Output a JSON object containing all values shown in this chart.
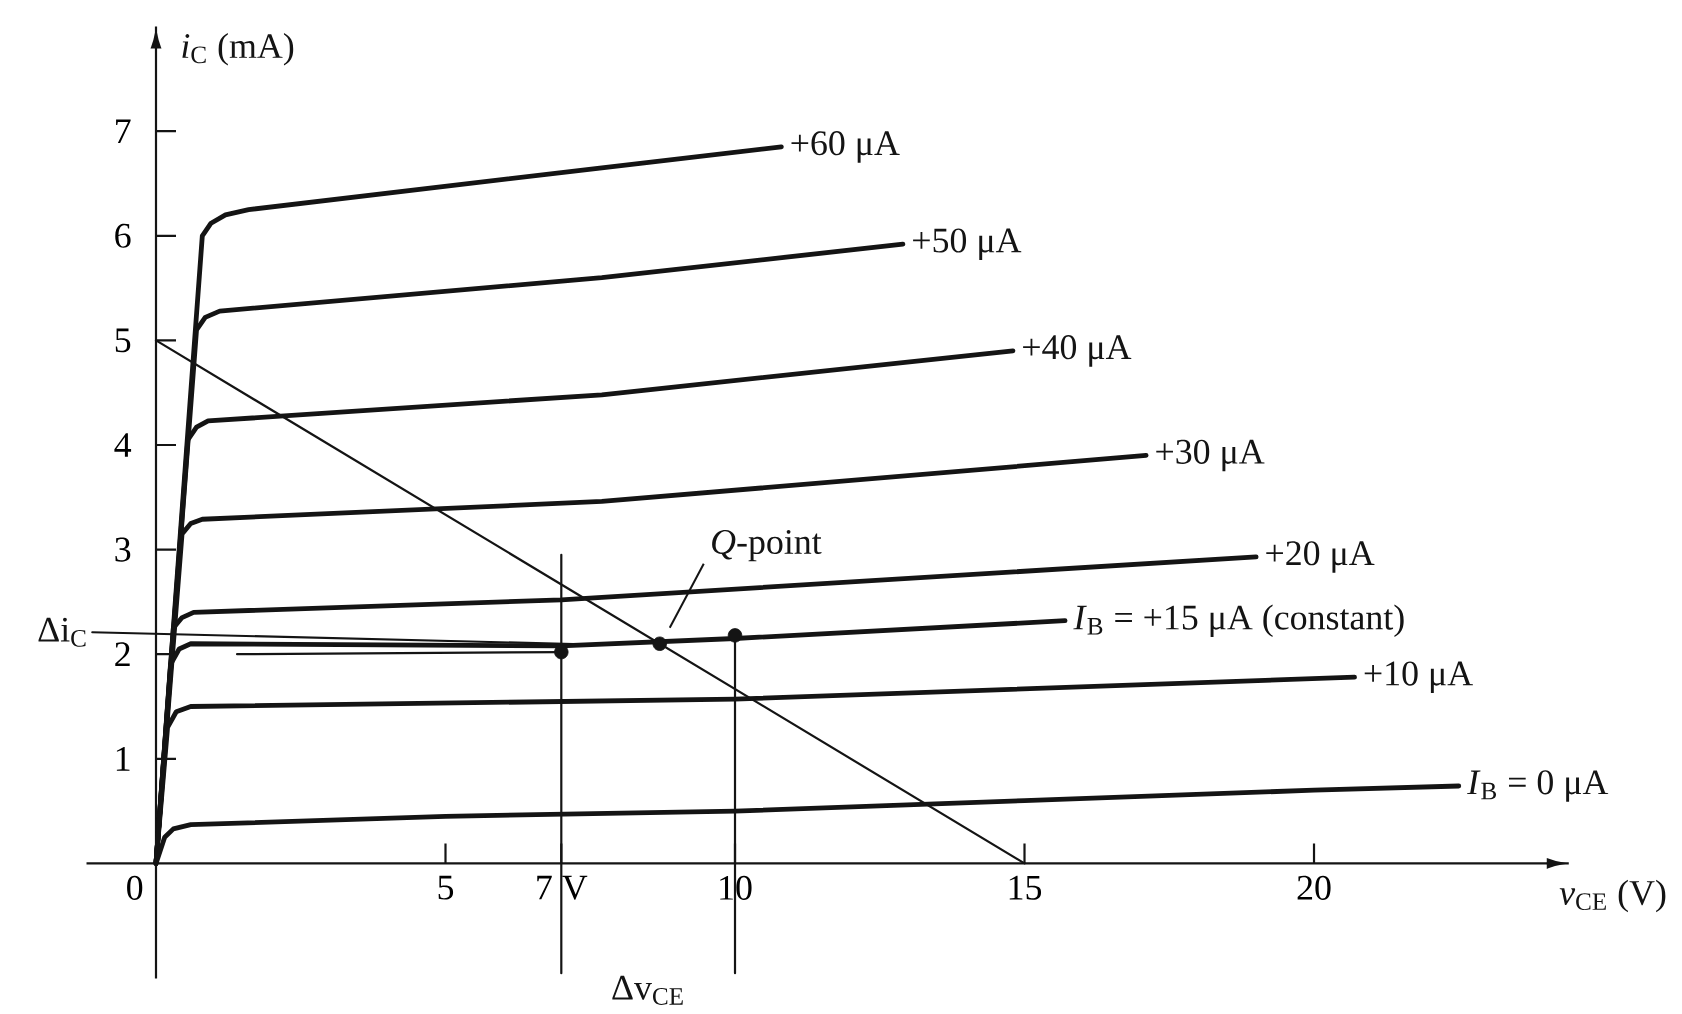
{
  "chart_data": {
    "type": "line",
    "xlabel": "*v*$_{CE}$ (V)",
    "ylabel": "*i*$_{C}$ (mA)",
    "xlim": [
      -1.2,
      24.4
    ],
    "ylim": [
      -1.1,
      8
    ],
    "xticks": [
      0,
      5,
      {
        "value": 7,
        "label": "7 V"
      },
      10,
      15,
      20
    ],
    "yticks": [
      1,
      2,
      3,
      4,
      5,
      6,
      7
    ],
    "series": [
      {
        "name": "+60 μA",
        "color": "#141414",
        "x": [
          0,
          0.8,
          0.95,
          1.2,
          1.6,
          7.7,
          10.8
        ],
        "values": [
          0,
          6.0,
          6.12,
          6.2,
          6.25,
          6.65,
          6.85
        ]
      },
      {
        "name": "+50 μA",
        "color": "#141414",
        "x": [
          0,
          0.7,
          0.85,
          1.1,
          7.7,
          12.9
        ],
        "values": [
          0,
          5.1,
          5.22,
          5.28,
          5.6,
          5.92
        ]
      },
      {
        "name": "+40 μA",
        "color": "#141414",
        "x": [
          0,
          0.55,
          0.7,
          0.9,
          7.7,
          14.8
        ],
        "values": [
          0,
          4.05,
          4.17,
          4.23,
          4.48,
          4.9
        ]
      },
      {
        "name": "+30 μA",
        "color": "#141414",
        "x": [
          0,
          0.45,
          0.6,
          0.8,
          7.7,
          17.1
        ],
        "values": [
          0,
          3.15,
          3.25,
          3.29,
          3.46,
          3.9
        ]
      },
      {
        "name": "+20 μA",
        "color": "#141414",
        "x": [
          0,
          0.3,
          0.45,
          0.65,
          7,
          19
        ],
        "values": [
          0,
          2.25,
          2.35,
          2.4,
          2.52,
          2.93
        ]
      },
      {
        "name": "*I*$_{B}$ = +15 μA (constant)",
        "color": "#141414",
        "x": [
          0,
          0.25,
          0.4,
          0.6,
          7,
          10,
          15.7
        ],
        "values": [
          0,
          1.9,
          2.05,
          2.1,
          2.08,
          2.15,
          2.32
        ]
      },
      {
        "name": "+10 μA",
        "color": "#141414",
        "x": [
          0,
          0.2,
          0.35,
          0.6,
          10,
          20.7
        ],
        "values": [
          0,
          1.3,
          1.45,
          1.5,
          1.57,
          1.78
        ]
      },
      {
        "name": "*I*$_{B}$ = 0 μA",
        "color": "#141414",
        "x": [
          0,
          0.15,
          0.3,
          0.6,
          5,
          10,
          15,
          20,
          22.5
        ],
        "values": [
          0,
          0.25,
          0.33,
          0.37,
          0.45,
          0.5,
          0.6,
          0.7,
          0.74
        ]
      },
      {
        "color": "#141414",
        "x": [
          0,
          15
        ],
        "values": [
          5,
          0
        ]
      },
      {
        "color": "#141414",
        "x": [
          7,
          7
        ],
        "values": [
          -1.05,
          2.95
        ]
      },
      {
        "color": "#141414",
        "x": [
          10,
          10
        ],
        "values": [
          -1.05,
          2.15
        ]
      },
      {
        "color": "#141414",
        "x": [
          -1.1,
          7.7
        ],
        "values": [
          2.21,
          2.09
        ]
      },
      {
        "color": "#141414",
        "x": [
          1.4,
          7
        ],
        "values": [
          2.0,
          2.02
        ]
      },
      {
        "type": "scatter",
        "marker": "circle",
        "color": "#141414",
        "x": [
          8.7,
          7,
          10
        ],
        "values": [
          2.1,
          2.02,
          2.18
        ]
      }
    ],
    "annotations": [
      {
        "text": "*Q*-point",
        "x": 8.7,
        "y": 2.1
      },
      {
        "text": "Δi$_{C}$",
        "x": -1.1,
        "y": 2.21
      },
      "Δv$_{CE}$"
    ]
  }
}
